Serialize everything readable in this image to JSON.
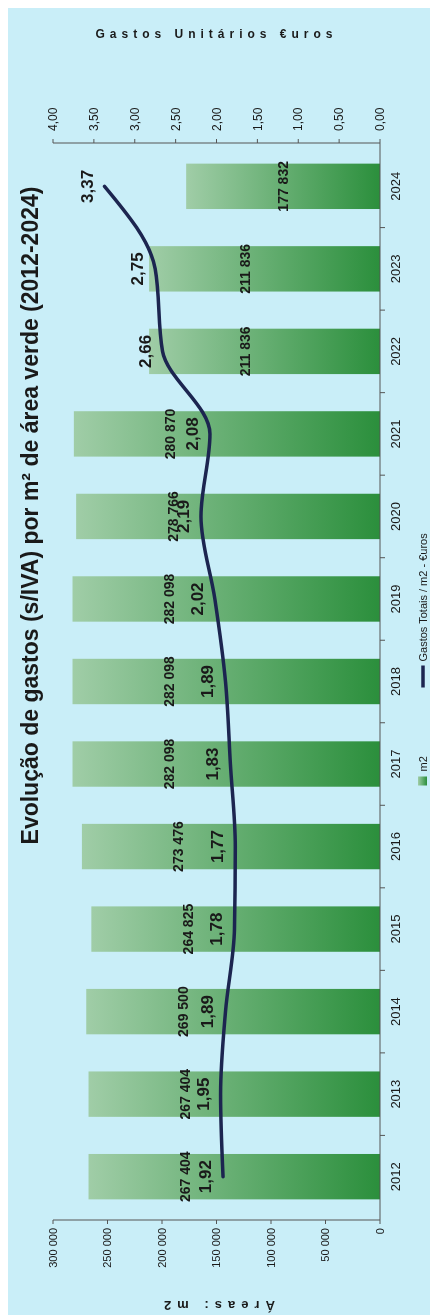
{
  "chart_data": {
    "type": "bar",
    "orientation": "horizontal",
    "title": "Evolução de gastos (s/IVA) por m² de área verde (2012-2024)",
    "xlabel": "Áreas: m2",
    "x2label": "Gastos Unitários €uros",
    "categories": [
      "2024",
      "2023",
      "2022",
      "2021",
      "2020",
      "2019",
      "2018",
      "2017",
      "2016",
      "2015",
      "2014",
      "2013",
      "2012"
    ],
    "series": [
      {
        "name": "m2",
        "color": "#2b8f3c",
        "values": [
          177832,
          211836,
          211836,
          280870,
          278766,
          282098,
          282098,
          282098,
          273476,
          264825,
          269500,
          267404,
          267404
        ],
        "value_labels": [
          "177 832",
          "211 836",
          "211 836",
          "280 870",
          "278 766",
          "282 098",
          "282 098",
          "282 098",
          "273 476",
          "264 825",
          "269 500",
          "267 404",
          "267 404"
        ]
      },
      {
        "name": "Gastos Totais / m2 - €uros",
        "type": "line",
        "axis": "x2",
        "color": "#1c2550",
        "values": [
          3.37,
          2.75,
          2.66,
          2.08,
          2.19,
          2.02,
          1.89,
          1.83,
          1.77,
          1.78,
          1.89,
          1.95,
          1.92
        ],
        "value_labels": [
          "3,37",
          "2,75",
          "2,66",
          "2,08",
          "2,19",
          "2,02",
          "1,89",
          "1,83",
          "1,77",
          "1,78",
          "1,89",
          "1,95",
          "1,92"
        ]
      }
    ],
    "xlim": [
      300000,
      0
    ],
    "xticks": [
      {
        "value": 300000,
        "label": "300 000"
      },
      {
        "value": 250000,
        "label": "250 000"
      },
      {
        "value": 200000,
        "label": "200 000"
      },
      {
        "value": 150000,
        "label": "150 000"
      },
      {
        "value": 100000,
        "label": "100 000"
      },
      {
        "value": 50000,
        "label": "50 000"
      },
      {
        "value": 0,
        "label": "0"
      }
    ],
    "x2lim": [
      4,
      0
    ],
    "x2ticks": [
      {
        "value": 4,
        "label": "4,00"
      },
      {
        "value": 3.5,
        "label": "3,50"
      },
      {
        "value": 3,
        "label": "3,00"
      },
      {
        "value": 2.5,
        "label": "2,50"
      },
      {
        "value": 2,
        "label": "2,00"
      },
      {
        "value": 1.5,
        "label": "1,50"
      },
      {
        "value": 1,
        "label": "1,00"
      },
      {
        "value": 0.5,
        "label": "0,50"
      },
      {
        "value": 0,
        "label": "0,00"
      }
    ],
    "grid": false,
    "legend": "right",
    "marker": "none",
    "line_style": "solid"
  }
}
